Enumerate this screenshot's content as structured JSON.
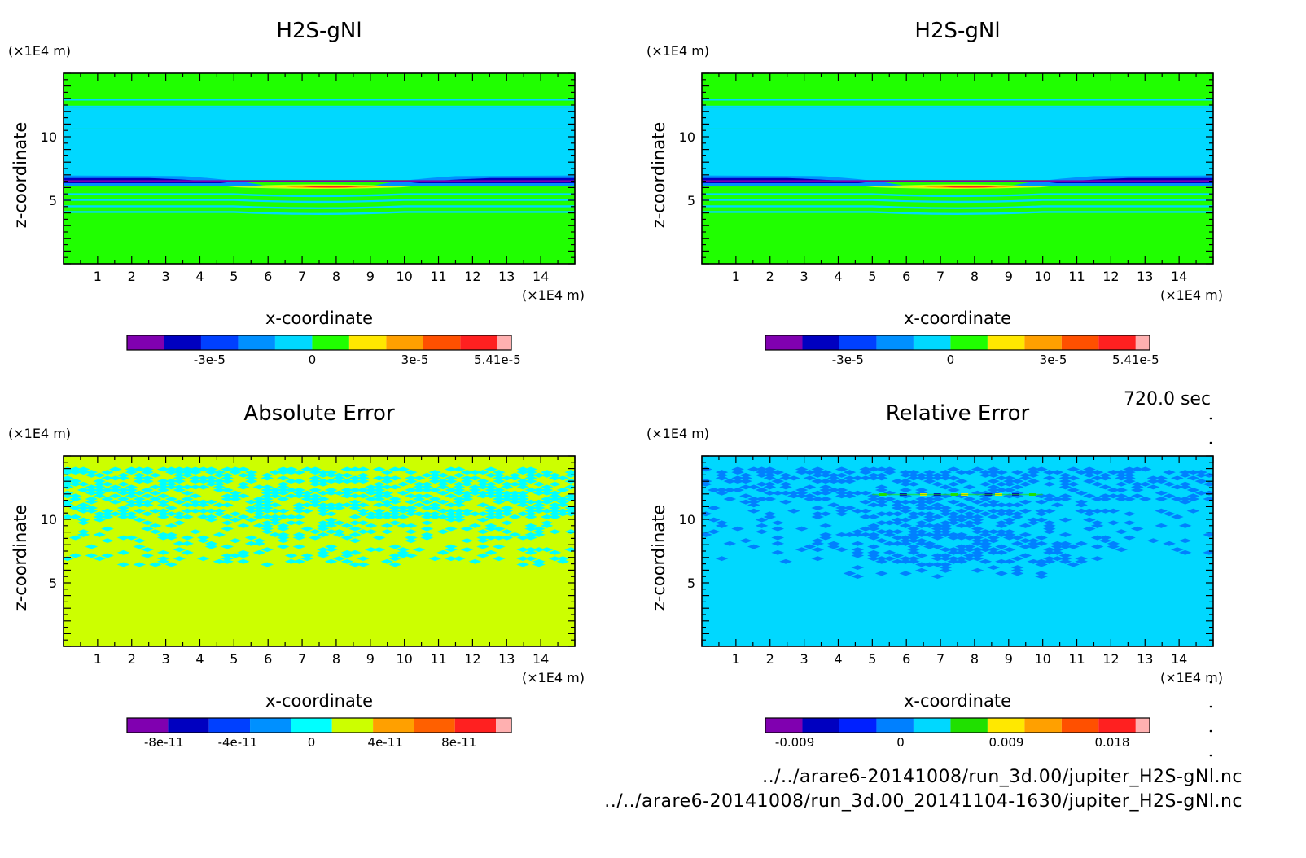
{
  "timestamp": "720.0 sec",
  "footer": {
    "file1": "../../arare6-20141008/run_3d.00/jupiter_H2S-gNl.nc",
    "file2": "../../arare6-20141008/run_3d.00_20141104-1630/jupiter_H2S-gNl.nc"
  },
  "chart_data": [
    {
      "type": "heatmap",
      "title": "H2S-gNl",
      "xlabel": "x-coordinate",
      "ylabel": "z-coordinate",
      "x_unit": "(x1E4 m)",
      "z_unit": "(x1E4 m)",
      "xlim": [
        0,
        15
      ],
      "zlim": [
        0,
        15
      ],
      "x_ticks": [
        1,
        2,
        3,
        4,
        5,
        6,
        7,
        8,
        9,
        10,
        11,
        12,
        13,
        14
      ],
      "z_ticks": [
        5,
        10
      ],
      "colorbar": {
        "colors": [
          "#8000b0",
          "#0000c0",
          "#0040ff",
          "#0090ff",
          "#00d8ff",
          "#20ff00",
          "#ffe800",
          "#ffa000",
          "#ff5000",
          "#ff2020",
          "#ffb0b0"
        ],
        "tick_labels": [
          {
            "value": -3e-05,
            "label": "-3e-5"
          },
          {
            "value": 0,
            "label": "0"
          },
          {
            "value": 3e-05,
            "label": "3e-5"
          },
          {
            "value": 5.41e-05,
            "label": "5.41e-5"
          }
        ],
        "range": [
          -5.41e-05,
          5.41e-05
        ]
      },
      "background_class": 5,
      "pattern": "layers"
    },
    {
      "type": "heatmap",
      "title": "H2S-gNl",
      "xlabel": "x-coordinate",
      "ylabel": "z-coordinate",
      "x_unit": "(x1E4 m)",
      "z_unit": "(x1E4 m)",
      "xlim": [
        0,
        15
      ],
      "zlim": [
        0,
        15
      ],
      "x_ticks": [
        1,
        2,
        3,
        4,
        5,
        6,
        7,
        8,
        9,
        10,
        11,
        12,
        13,
        14
      ],
      "z_ticks": [
        5,
        10
      ],
      "colorbar": {
        "colors": [
          "#8000b0",
          "#0000c0",
          "#0040ff",
          "#0090ff",
          "#00d8ff",
          "#20ff00",
          "#ffe800",
          "#ffa000",
          "#ff5000",
          "#ff2020",
          "#ffb0b0"
        ],
        "tick_labels": [
          {
            "value": -3e-05,
            "label": "-3e-5"
          },
          {
            "value": 0,
            "label": "0"
          },
          {
            "value": 3e-05,
            "label": "3e-5"
          },
          {
            "value": 5.41e-05,
            "label": "5.41e-5"
          }
        ],
        "range": [
          -5.41e-05,
          5.41e-05
        ]
      },
      "background_class": 5,
      "pattern": "layers"
    },
    {
      "type": "heatmap",
      "title": "Absolute Error",
      "xlabel": "x-coordinate",
      "ylabel": "z-coordinate",
      "x_unit": "(x1E4 m)",
      "z_unit": "(x1E4 m)",
      "xlim": [
        0,
        15
      ],
      "zlim": [
        0,
        15
      ],
      "x_ticks": [
        1,
        2,
        3,
        4,
        5,
        6,
        7,
        8,
        9,
        10,
        11,
        12,
        13,
        14
      ],
      "z_ticks": [
        5,
        10
      ],
      "colorbar": {
        "colors": [
          "#8000b0",
          "#0000c0",
          "#0040ff",
          "#0090ff",
          "#00ffff",
          "#ccff00",
          "#ffa000",
          "#ff6000",
          "#ff2020",
          "#ffb0b0"
        ],
        "tick_labels": [
          {
            "value": -8e-11,
            "label": "-8e-11"
          },
          {
            "value": -4e-11,
            "label": "-4e-11"
          },
          {
            "value": 0,
            "label": "0"
          },
          {
            "value": 4e-11,
            "label": "4e-11"
          },
          {
            "value": 8e-11,
            "label": "8e-11"
          }
        ],
        "range": [
          -1e-10,
          1e-10
        ]
      },
      "background_class": 5,
      "noise_class": 4,
      "pattern": "noise-abs"
    },
    {
      "type": "heatmap",
      "title": "Relative Error",
      "xlabel": "x-coordinate",
      "ylabel": "z-coordinate",
      "x_unit": "(x1E4 m)",
      "z_unit": "(x1E4 m)",
      "xlim": [
        0,
        15
      ],
      "zlim": [
        0,
        15
      ],
      "x_ticks": [
        1,
        2,
        3,
        4,
        5,
        6,
        7,
        8,
        9,
        10,
        11,
        12,
        13,
        14
      ],
      "z_ticks": [
        5,
        10
      ],
      "colorbar": {
        "colors": [
          "#8000b0",
          "#0000c0",
          "#0020ff",
          "#0080ff",
          "#00d8ff",
          "#20e000",
          "#ffe800",
          "#ffa000",
          "#ff5000",
          "#ff2020",
          "#ffb0b0"
        ],
        "tick_labels": [
          {
            "value": -0.009,
            "label": "-0.009"
          },
          {
            "value": 0,
            "label": "0"
          },
          {
            "value": 0.009,
            "label": "0.009"
          },
          {
            "value": 0.018,
            "label": "0.018"
          }
        ],
        "range": [
          -0.0115,
          0.02
        ]
      },
      "background_class": 4,
      "noise_class": 3,
      "pattern": "noise-rel"
    }
  ]
}
